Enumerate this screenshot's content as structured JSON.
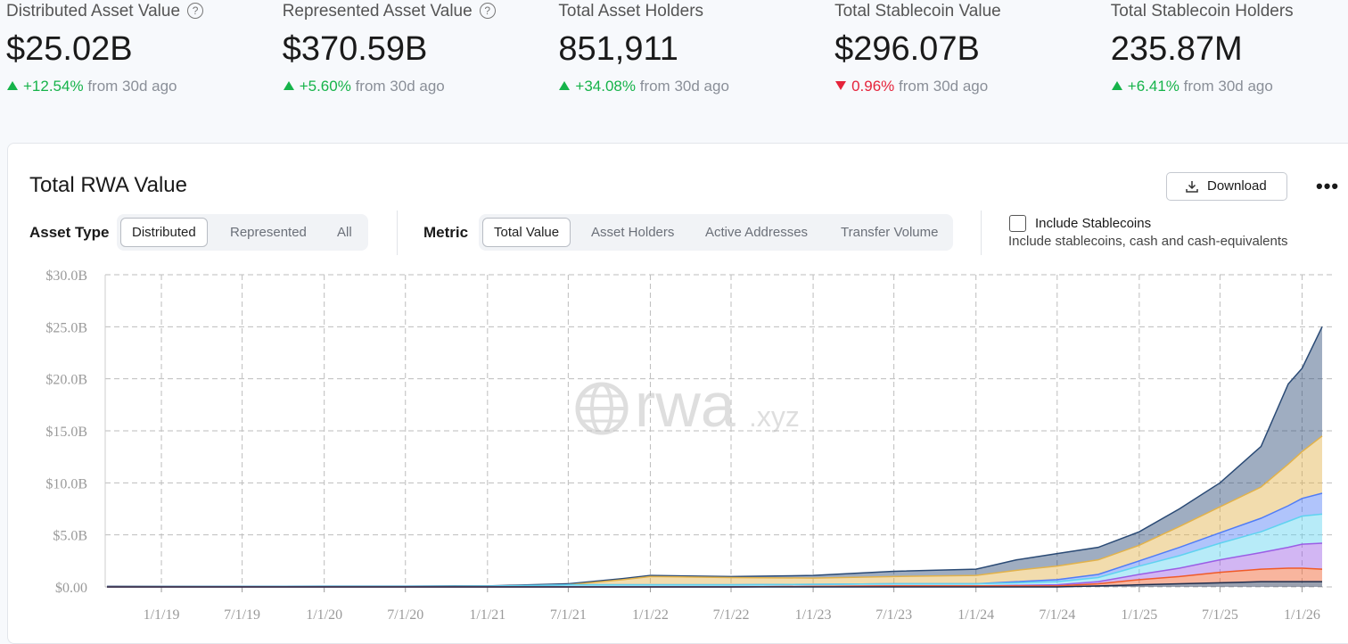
{
  "stats": [
    {
      "label": "Distributed Asset Value",
      "value": "$25.02B",
      "change": "+12.54%",
      "note": "from 30d ago",
      "direction": "up",
      "help": true
    },
    {
      "label": "Represented Asset Value",
      "value": "$370.59B",
      "change": "+5.60%",
      "note": "from 30d ago",
      "direction": "up",
      "help": true
    },
    {
      "label": "Total Asset Holders",
      "value": "851,911",
      "change": "+34.08%",
      "note": "from 30d ago",
      "direction": "up",
      "help": false
    },
    {
      "label": "Total Stablecoin Value",
      "value": "$296.07B",
      "change": "0.96%",
      "note": "from 30d ago",
      "direction": "down",
      "help": false
    },
    {
      "label": "Total Stablecoin Holders",
      "value": "235.87M",
      "change": "+6.41%",
      "note": "from 30d ago",
      "direction": "up",
      "help": false
    }
  ],
  "panel": {
    "title": "Total RWA Value",
    "download": "Download",
    "asset_type": {
      "label": "Asset Type",
      "options": [
        "Distributed",
        "Represented",
        "All"
      ],
      "selected_index": 0
    },
    "metric": {
      "label": "Metric",
      "options": [
        "Total Value",
        "Asset Holders",
        "Active Addresses",
        "Transfer Volume"
      ],
      "selected_index": 0
    },
    "checkbox": {
      "label": "Include Stablecoins",
      "description": "Include stablecoins, cash and cash-equivalents",
      "checked": false
    },
    "watermark": {
      "name": "rwa",
      "suffix": ".xyz"
    }
  },
  "chart_data": {
    "type": "stacked_area",
    "x": [
      "2018-09-01",
      "2019-01-01",
      "2019-07-01",
      "2020-01-01",
      "2020-07-01",
      "2021-01-01",
      "2021-07-01",
      "2021-11-01",
      "2022-01-01",
      "2022-07-01",
      "2023-01-01",
      "2023-07-01",
      "2024-01-01",
      "2024-04-01",
      "2024-07-01",
      "2024-10-01",
      "2025-01-01",
      "2025-04-01",
      "2025-07-01",
      "2025-10-01",
      "2025-12-01",
      "2026-01-01",
      "2026-02-15"
    ],
    "series": [
      {
        "color": "#1f2d4d",
        "values": [
          0,
          0,
          0,
          0,
          0,
          0,
          0,
          0,
          0,
          0,
          0,
          0,
          0,
          0,
          0,
          0.1,
          0.2,
          0.3,
          0.4,
          0.5,
          0.5,
          0.5,
          0.5
        ]
      },
      {
        "color": "#f05a28",
        "values": [
          0,
          0,
          0,
          0,
          0,
          0,
          0,
          0,
          0,
          0,
          0.05,
          0.1,
          0.1,
          0.1,
          0.1,
          0.2,
          0.5,
          0.7,
          1.0,
          1.2,
          1.3,
          1.3,
          1.2
        ]
      },
      {
        "color": "#9b5de5",
        "values": [
          0,
          0,
          0,
          0,
          0,
          0,
          0,
          0,
          0,
          0,
          0,
          0,
          0,
          0.05,
          0.1,
          0.2,
          0.5,
          0.8,
          1.2,
          1.6,
          2.0,
          2.3,
          2.5
        ]
      },
      {
        "color": "#5fd3f0",
        "values": [
          0.02,
          0.03,
          0.04,
          0.05,
          0.05,
          0.08,
          0.2,
          0.2,
          0.2,
          0.2,
          0.2,
          0.2,
          0.2,
          0.25,
          0.3,
          0.4,
          0.8,
          1.2,
          1.6,
          2.0,
          2.5,
          2.7,
          2.8
        ]
      },
      {
        "color": "#4f7cf7",
        "values": [
          0,
          0,
          0,
          0,
          0,
          0,
          0,
          0,
          0,
          0,
          0,
          0,
          0,
          0.1,
          0.2,
          0.3,
          0.5,
          0.8,
          1.0,
          1.3,
          1.5,
          1.7,
          2.0
        ]
      },
      {
        "color": "#e2b24a",
        "values": [
          0,
          0,
          0,
          0,
          0,
          0,
          0,
          0.5,
          0.8,
          0.7,
          0.6,
          0.7,
          0.8,
          1.1,
          1.3,
          1.4,
          1.5,
          2.0,
          2.5,
          3.0,
          4.0,
          4.5,
          5.5
        ]
      },
      {
        "color": "#2a4a75",
        "values": [
          0.03,
          0.02,
          0.01,
          0.03,
          0.03,
          0.02,
          0.1,
          0.1,
          0.1,
          0.1,
          0.25,
          0.5,
          0.6,
          1.0,
          1.2,
          1.2,
          1.3,
          1.7,
          2.3,
          3.9,
          7.7,
          8.0,
          10.5
        ]
      }
    ],
    "xlim": [
      "2018-08-28",
      "2026-03-15"
    ],
    "xticks": [
      {
        "value": "2019-01-01",
        "label": "1/1/19"
      },
      {
        "value": "2019-07-01",
        "label": "7/1/19"
      },
      {
        "value": "2020-01-01",
        "label": "1/1/20"
      },
      {
        "value": "2020-07-01",
        "label": "7/1/20"
      },
      {
        "value": "2021-01-01",
        "label": "1/1/21"
      },
      {
        "value": "2021-07-01",
        "label": "7/1/21"
      },
      {
        "value": "2022-01-01",
        "label": "1/1/22"
      },
      {
        "value": "2022-07-01",
        "label": "7/1/22"
      },
      {
        "value": "2023-01-01",
        "label": "1/1/23"
      },
      {
        "value": "2023-07-01",
        "label": "7/1/23"
      },
      {
        "value": "2024-01-01",
        "label": "1/1/24"
      },
      {
        "value": "2024-07-01",
        "label": "7/1/24"
      },
      {
        "value": "2025-01-01",
        "label": "1/1/25"
      },
      {
        "value": "2025-07-01",
        "label": "7/1/25"
      },
      {
        "value": "2026-01-01",
        "label": "1/1/26"
      }
    ],
    "ylim": [
      0,
      30
    ],
    "yticks": [
      {
        "value": 0,
        "label": "$0.00"
      },
      {
        "value": 5,
        "label": "$5.0B"
      },
      {
        "value": 10,
        "label": "$10.0B"
      },
      {
        "value": 15,
        "label": "$15.0B"
      },
      {
        "value": 20,
        "label": "$20.0B"
      },
      {
        "value": 25,
        "label": "$25.0B"
      },
      {
        "value": 30,
        "label": "$30.0B"
      }
    ],
    "grid": true
  }
}
